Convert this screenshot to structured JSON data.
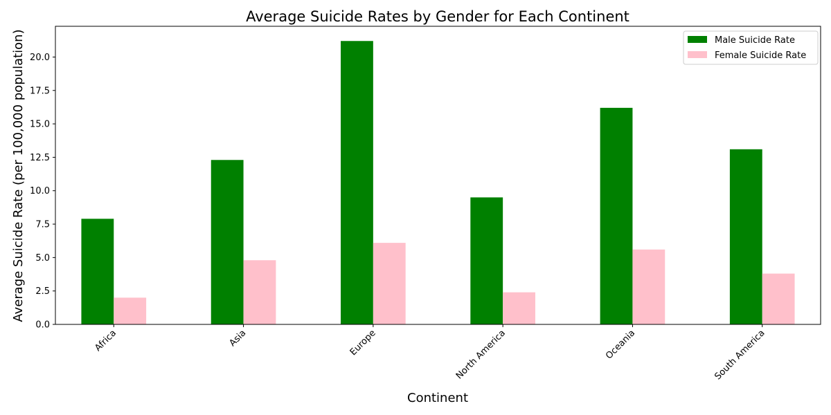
{
  "chart_data": {
    "type": "bar",
    "title": "Average Suicide Rates by Gender for Each Continent",
    "xlabel": "Continent",
    "ylabel": "Average Suicide Rate (per 100,000 population)",
    "categories": [
      "Africa",
      "Asia",
      "Europe",
      "North America",
      "Oceania",
      "South America"
    ],
    "series": [
      {
        "name": "Male Suicide Rate",
        "color": "#008000",
        "values": [
          7.9,
          12.3,
          21.2,
          9.5,
          16.2,
          13.1
        ]
      },
      {
        "name": "Female Suicide Rate",
        "color": "#ffc0cb",
        "values": [
          2.0,
          4.8,
          6.1,
          2.4,
          5.6,
          3.8
        ]
      }
    ],
    "ylim": [
      0,
      22.3
    ],
    "yticks": [
      "0.0",
      "2.5",
      "5.0",
      "7.5",
      "10.0",
      "12.5",
      "15.0",
      "17.5",
      "20.0"
    ],
    "legend_position": "top-right",
    "grid": false
  }
}
